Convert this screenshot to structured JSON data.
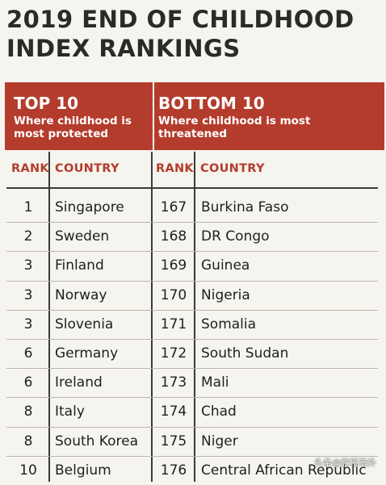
{
  "title": {
    "line1": "2019 END OF CHILDHOOD",
    "line2": "INDEX RANKINGS"
  },
  "banner": {
    "left_heading": "TOP 10",
    "left_sub": "Where childhood is most protected",
    "right_heading": "BOTTOM 10",
    "right_sub": "Where childhood is most threatened",
    "color": "#b43c2c"
  },
  "headers": {
    "rank_left": "RANK",
    "country_left": "COUNTRY",
    "rank_right": "RANK",
    "country_right": "COUNTRY"
  },
  "rows": [
    {
      "rank_top": "1",
      "country_top": "Singapore",
      "rank_bottom": "167",
      "country_bottom": "Burkina Faso"
    },
    {
      "rank_top": "2",
      "country_top": "Sweden",
      "rank_bottom": "168",
      "country_bottom": "DR Congo"
    },
    {
      "rank_top": "3",
      "country_top": "Finland",
      "rank_bottom": "169",
      "country_bottom": "Guinea"
    },
    {
      "rank_top": "3",
      "country_top": "Norway",
      "rank_bottom": "170",
      "country_bottom": "Nigeria"
    },
    {
      "rank_top": "3",
      "country_top": "Slovenia",
      "rank_bottom": "171",
      "country_bottom": "Somalia"
    },
    {
      "rank_top": "6",
      "country_top": "Germany",
      "rank_bottom": "172",
      "country_bottom": "South Sudan"
    },
    {
      "rank_top": "6",
      "country_top": "Ireland",
      "rank_bottom": "173",
      "country_bottom": "Mali"
    },
    {
      "rank_top": "8",
      "country_top": "Italy",
      "rank_bottom": "174",
      "country_bottom": "Chad"
    },
    {
      "rank_top": "8",
      "country_top": "South Korea",
      "rank_bottom": "175",
      "country_bottom": "Niger"
    },
    {
      "rank_top": "10",
      "country_top": "Belgium",
      "rank_bottom": "176",
      "country_bottom": "Central African Republic"
    }
  ],
  "watermark": "头条@欣将海外"
}
